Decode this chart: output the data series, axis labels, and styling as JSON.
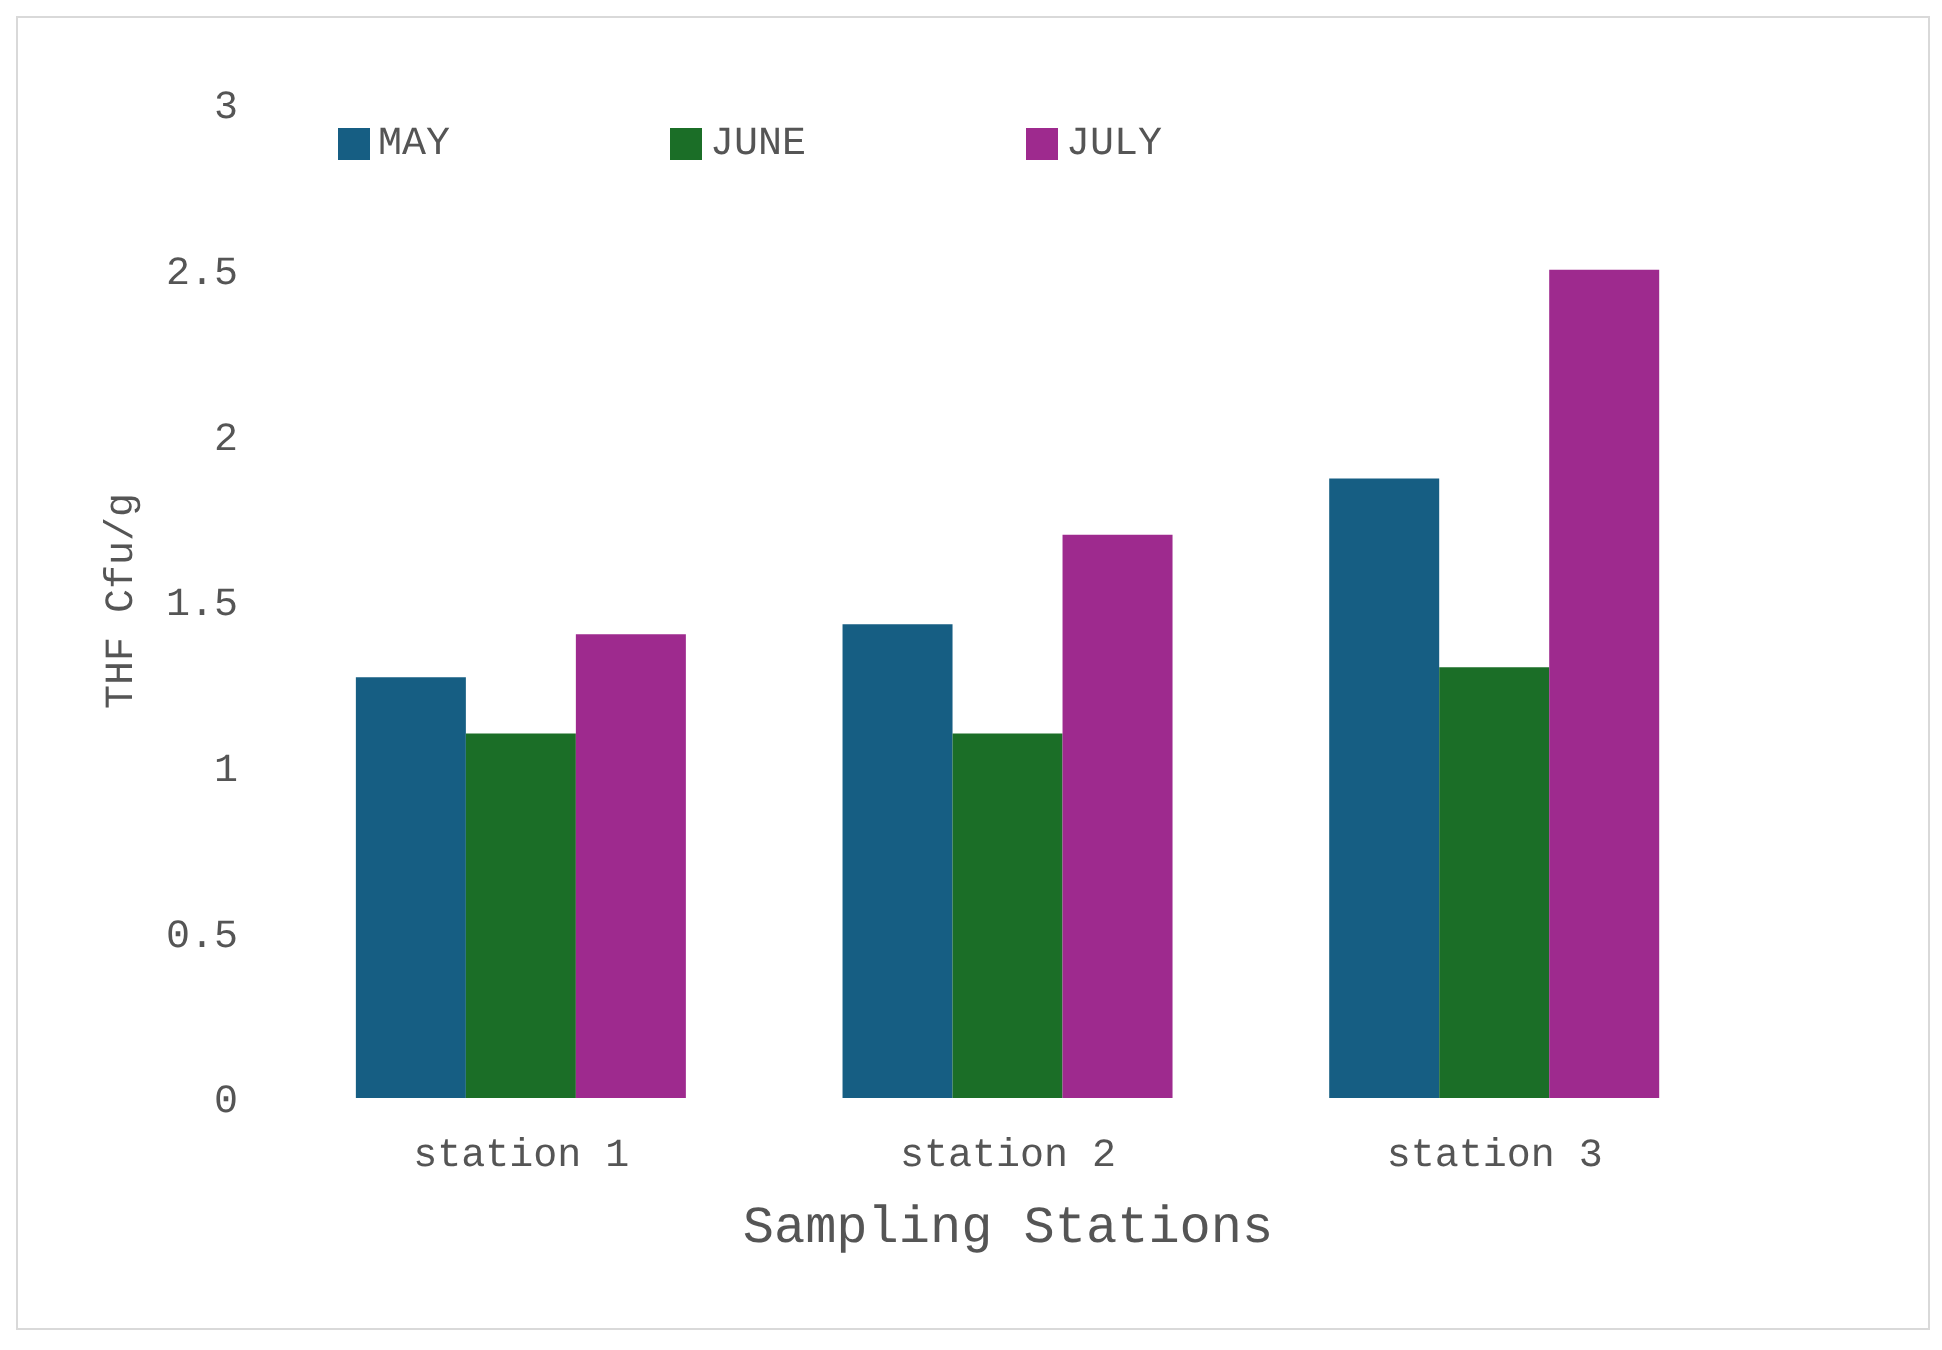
{
  "chart_data": {
    "type": "bar",
    "xlabel": "Sampling Stations",
    "ylabel": "THF Cfu/g",
    "categories": [
      "station 1",
      "station 2",
      "station 3"
    ],
    "series": [
      {
        "name": "MAY",
        "color": "#165e83",
        "values": [
          1.27,
          1.43,
          1.87
        ]
      },
      {
        "name": "JUNE",
        "color": "#1b6e27",
        "values": [
          1.1,
          1.1,
          1.3
        ]
      },
      {
        "name": "JULY",
        "color": "#9e2a8e",
        "values": [
          1.4,
          1.7,
          2.5
        ]
      }
    ],
    "ylim": [
      0,
      3
    ],
    "yticks": [
      0,
      0.5,
      1,
      1.5,
      2,
      2.5,
      3
    ],
    "grid": false,
    "legend": "top left"
  }
}
